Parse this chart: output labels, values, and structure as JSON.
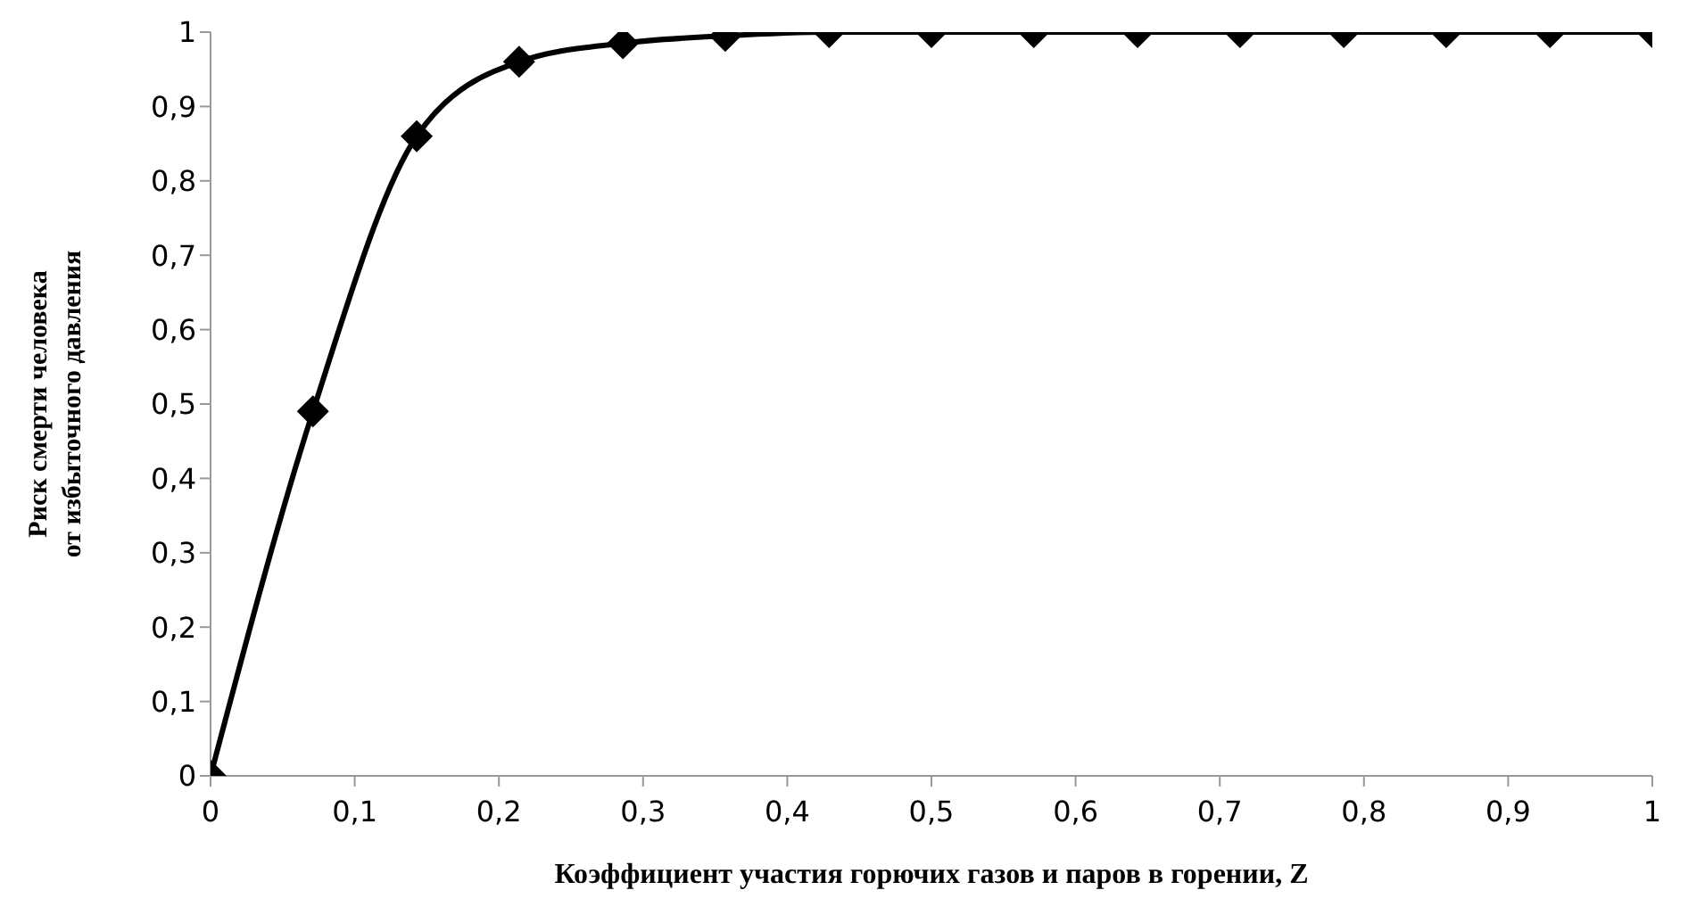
{
  "chart_data": {
    "type": "line",
    "xlabel": "Коэффициент участия горючих газов и паров в горении, Z",
    "ylabel": "Риск смерти человека от избыточного давления",
    "x": [
      0,
      0.071,
      0.143,
      0.214,
      0.286,
      0.357,
      0.429,
      0.5,
      0.571,
      0.643,
      0.714,
      0.786,
      0.857,
      0.929,
      1
    ],
    "series": [
      {
        "color": "#000000",
        "values": [
          0,
          0.49,
          0.86,
          0.96,
          0.985,
          0.995,
          1,
          1,
          1,
          1,
          1,
          1,
          1,
          1,
          1
        ]
      }
    ],
    "xlim": [
      0,
      1
    ],
    "xticks": [
      {
        "value": 0,
        "label": "0"
      },
      {
        "value": 0.1,
        "label": "0,1"
      },
      {
        "value": 0.2,
        "label": "0,2"
      },
      {
        "value": 0.3,
        "label": "0,3"
      },
      {
        "value": 0.4,
        "label": "0,4"
      },
      {
        "value": 0.5,
        "label": "0,5"
      },
      {
        "value": 0.6,
        "label": "0,6"
      },
      {
        "value": 0.7,
        "label": "0,7"
      },
      {
        "value": 0.8,
        "label": "0,8"
      },
      {
        "value": 0.9,
        "label": "0,9"
      },
      {
        "value": 1,
        "label": "1"
      }
    ],
    "ylim": [
      0,
      1
    ],
    "yticks": [
      {
        "value": 0,
        "label": "0"
      },
      {
        "value": 0.1,
        "label": "0,1"
      },
      {
        "value": 0.2,
        "label": "0,2"
      },
      {
        "value": 0.3,
        "label": "0,3"
      },
      {
        "value": 0.4,
        "label": "0,4"
      },
      {
        "value": 0.5,
        "label": "0,5"
      },
      {
        "value": 0.6,
        "label": "0,6"
      },
      {
        "value": 0.7,
        "label": "0,7"
      },
      {
        "value": 0.8,
        "label": "0,8"
      },
      {
        "value": 0.9,
        "label": "0,9"
      },
      {
        "value": 1,
        "label": "1"
      }
    ],
    "grid": false,
    "legend": false,
    "marker": "diamond",
    "line_style": "solid"
  }
}
